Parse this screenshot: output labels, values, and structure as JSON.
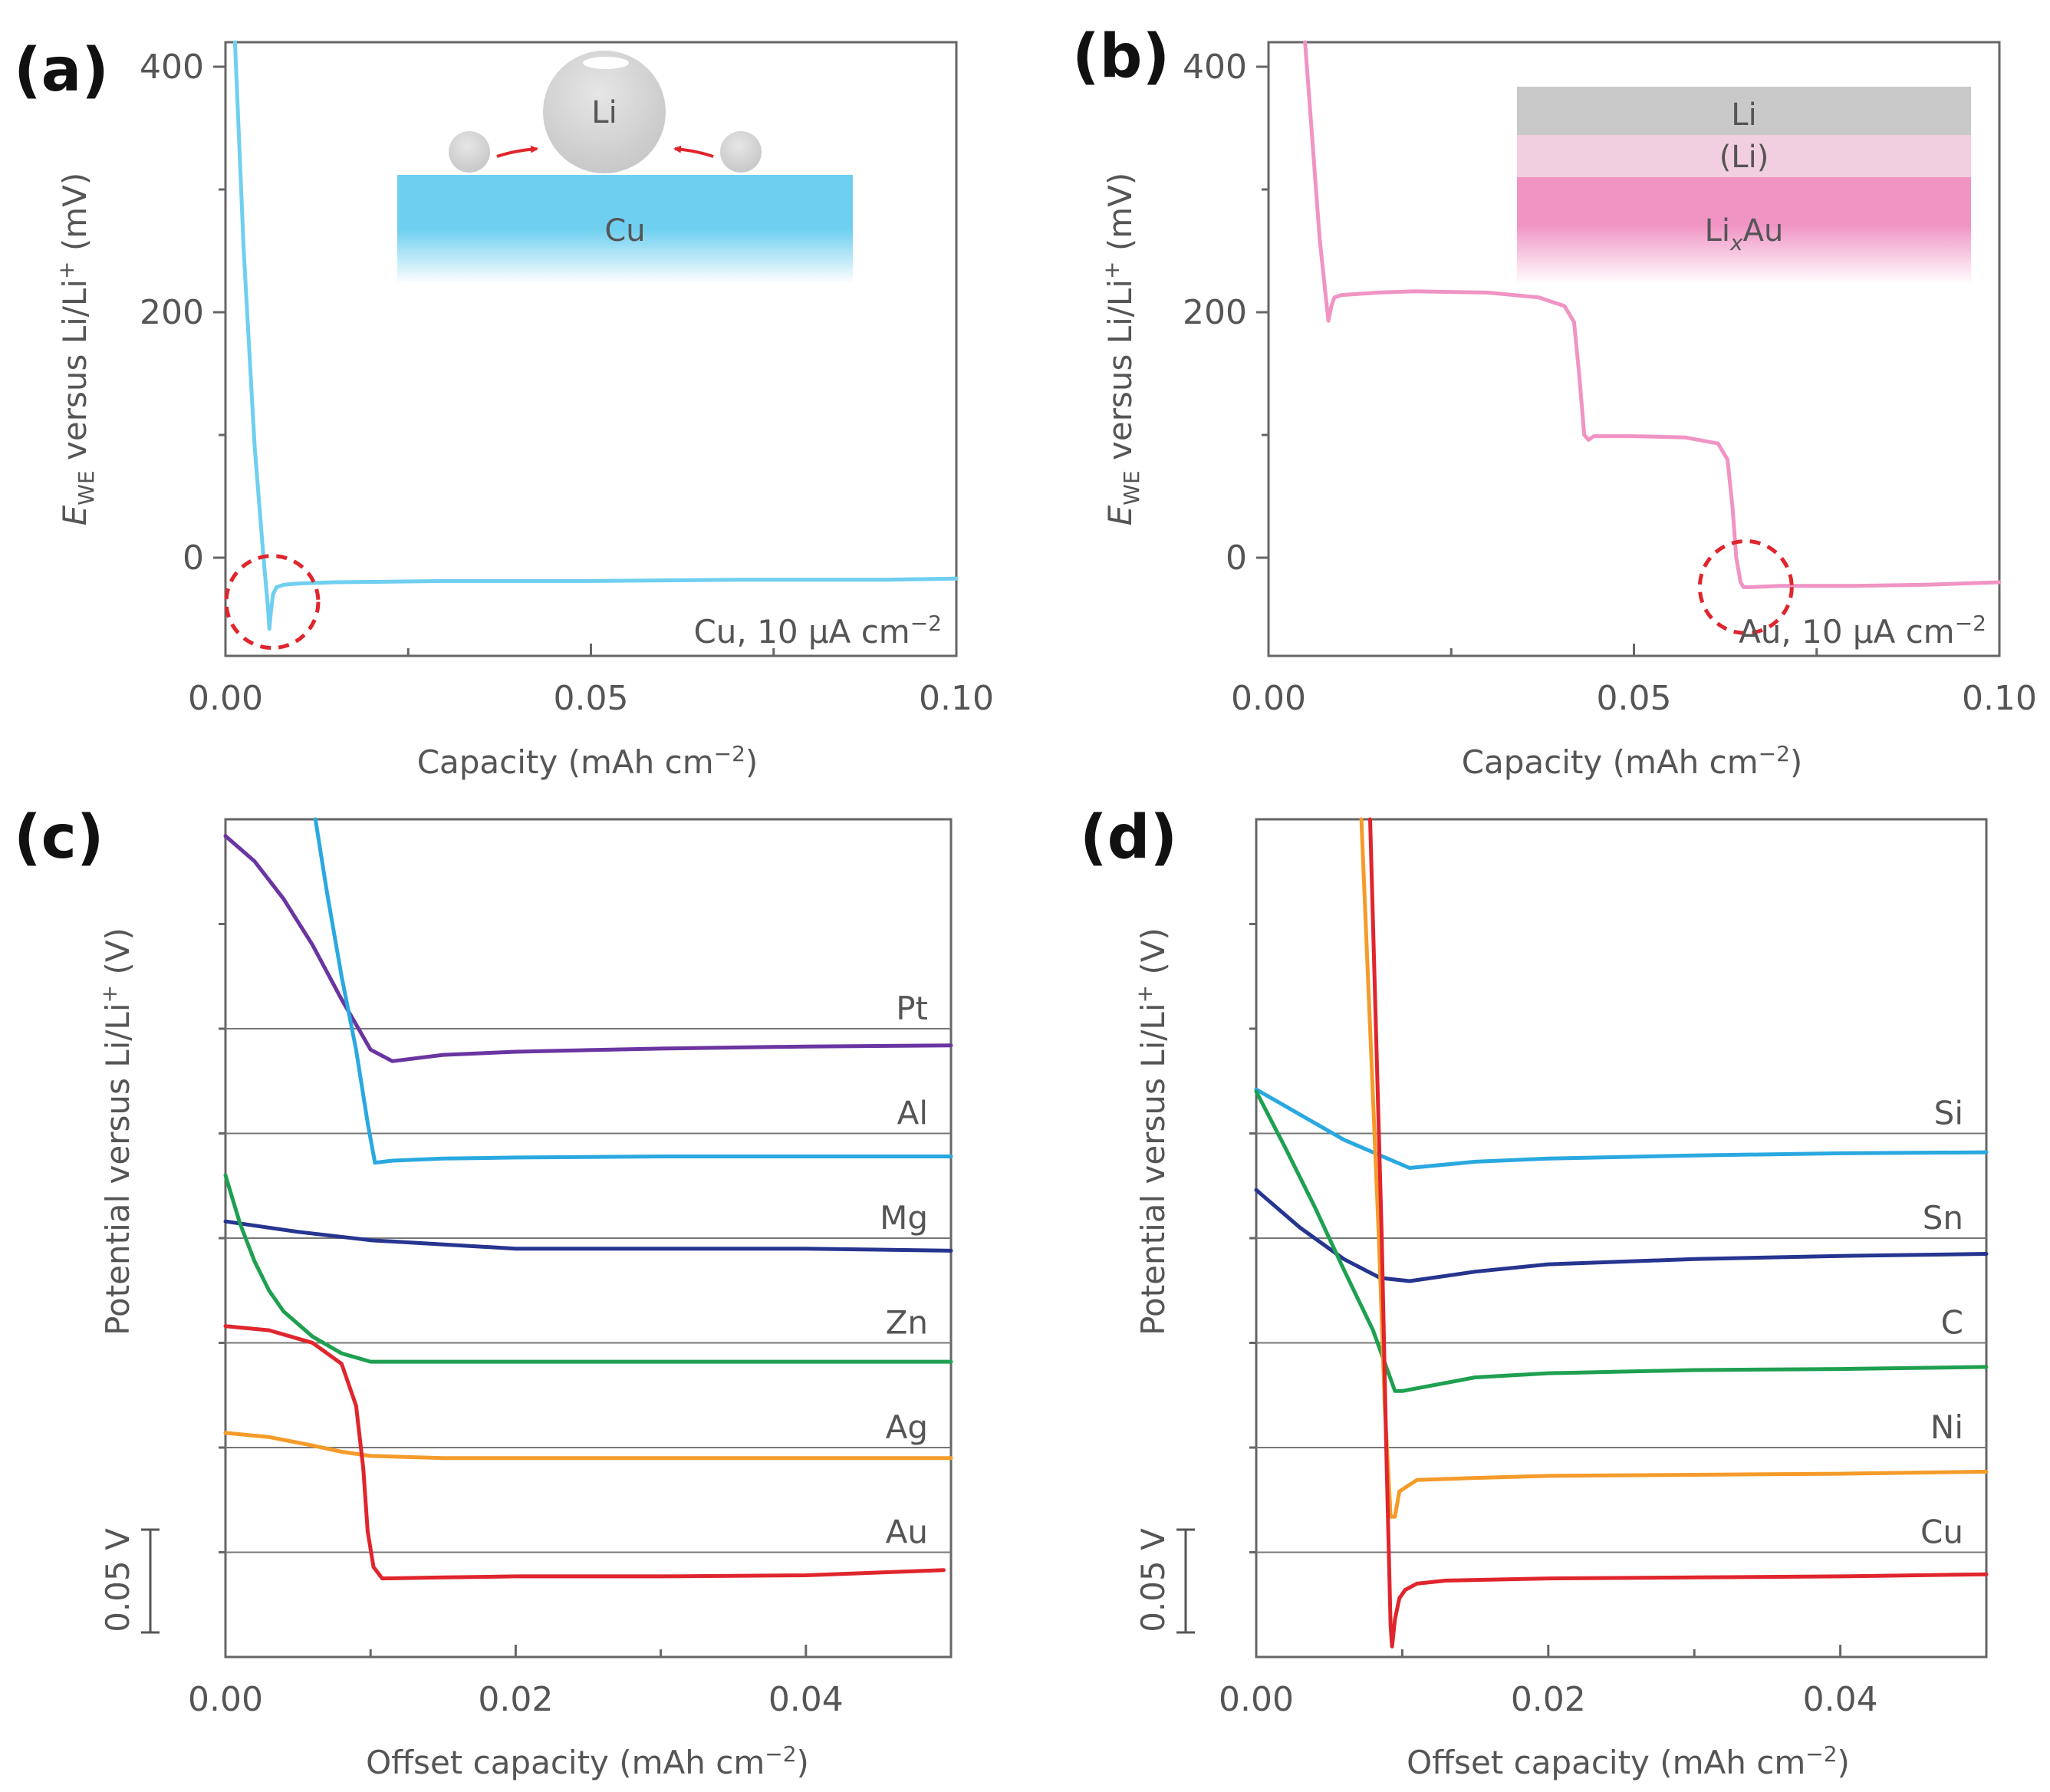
{
  "figure": {
    "panel_labels": [
      "(a)",
      "(b)",
      "(c)",
      "(d)"
    ],
    "colors": {
      "cu_blue": "#6fcff0",
      "au_pink": "#f094c4",
      "purple": "#6a35a0",
      "light_blue": "#2aa8e0",
      "navy": "#26358f",
      "green": "#1fa050",
      "red": "#e0252d",
      "orange": "#f59b2a",
      "dashed_circle": "#e0252d"
    }
  },
  "chart_data": [
    {
      "panel": "(a)",
      "type": "line",
      "xlabel": "Capacity (mAh cm",
      "xlabel_sup": "−2",
      "xlabel_end": ")",
      "ylabel_parts": [
        "E",
        "WE",
        " versus Li/Li",
        "+",
        " (mV)"
      ],
      "xlim": [
        0,
        0.1
      ],
      "ylim": [
        -80,
        420
      ],
      "xticks": [
        0,
        0.05,
        0.1
      ],
      "xtick_labels": [
        "0.00",
        "0.05",
        "0.10"
      ],
      "yticks": [
        0,
        200,
        400
      ],
      "ytick_labels": [
        "0",
        "200",
        "400"
      ],
      "annotation": "Cu, 10 μA cm",
      "annotation_sup": "−2",
      "inset": {
        "big_sphere": "Li",
        "substrate": "Cu"
      },
      "circle_center": [
        0.0064,
        -36
      ],
      "series": [
        {
          "name": "Cu",
          "color": "#6fcff0",
          "x": [
            0.0013,
            0.0025,
            0.004,
            0.0052,
            0.0058,
            0.006,
            0.0062,
            0.0065,
            0.007,
            0.008,
            0.01,
            0.015,
            0.03,
            0.05,
            0.07,
            0.09,
            0.1
          ],
          "y": [
            420,
            250,
            90,
            0,
            -40,
            -58,
            -45,
            -30,
            -24,
            -22,
            -21,
            -20,
            -19,
            -19,
            -18,
            -18,
            -17
          ]
        }
      ]
    },
    {
      "panel": "(b)",
      "type": "line",
      "xlabel": "Capacity (mAh cm",
      "xlabel_sup": "−2",
      "xlabel_end": ")",
      "ylabel_parts": [
        "E",
        "WE",
        " versus Li/Li",
        "+",
        " (mV)"
      ],
      "xlim": [
        0,
        0.1
      ],
      "ylim": [
        -80,
        420
      ],
      "xticks": [
        0,
        0.05,
        0.1
      ],
      "xtick_labels": [
        "0.00",
        "0.05",
        "0.10"
      ],
      "yticks": [
        0,
        200,
        400
      ],
      "ytick_labels": [
        "0",
        "200",
        "400"
      ],
      "annotation": "Au, 10 μA cm",
      "annotation_sup": "−2",
      "inset": {
        "layers": [
          "Li",
          "(Li)",
          "Li",
          "x",
          "Au"
        ]
      },
      "circle_center": [
        0.0653,
        -24
      ],
      "series": [
        {
          "name": "Au",
          "color": "#f094c4",
          "x": [
            0.005,
            0.006,
            0.007,
            0.0078,
            0.0082,
            0.0086,
            0.009,
            0.01,
            0.015,
            0.02,
            0.03,
            0.037,
            0.0405,
            0.0418,
            0.0425,
            0.0432,
            0.0438,
            0.0445,
            0.05,
            0.057,
            0.0615,
            0.0628,
            0.0635,
            0.064,
            0.0646,
            0.065,
            0.066,
            0.07,
            0.08,
            0.09,
            0.1
          ],
          "y": [
            420,
            340,
            260,
            215,
            193,
            205,
            212,
            214,
            216,
            217,
            216,
            212,
            205,
            192,
            150,
            100,
            96,
            99,
            99,
            98,
            93,
            80,
            40,
            0,
            -20,
            -24,
            -24,
            -23,
            -23,
            -22,
            -20
          ]
        }
      ]
    },
    {
      "panel": "(c)",
      "type": "line",
      "xlabel": "Offset capacity (mAh cm",
      "xlabel_sup": "−2",
      "xlabel_end": ")",
      "ylabel": "Potential versus Li/Li",
      "ylabel_sup": "+",
      "ylabel_end": " (V)",
      "scale_bar": "0.05 V",
      "xlim": [
        0,
        0.05
      ],
      "ylim": [
        0,
        0.4
      ],
      "xticks": [
        0,
        0.02,
        0.04
      ],
      "xtick_labels": [
        "0.00",
        "0.02",
        "0.04"
      ],
      "xminor": [
        0.01,
        0.03,
        0.05
      ],
      "yminor": [
        0.05,
        0.1,
        0.15,
        0.2,
        0.25,
        0.3,
        0.35
      ],
      "baselines": [
        0.3,
        0.25,
        0.2,
        0.15,
        0.1,
        0.05
      ],
      "series": [
        {
          "name": "Pt",
          "color": "#6a35a0",
          "baseline": 0.3,
          "x": [
            0,
            0.002,
            0.004,
            0.006,
            0.008,
            0.01,
            0.0115,
            0.015,
            0.02,
            0.03,
            0.04,
            0.05
          ],
          "y": [
            0.392,
            0.38,
            0.362,
            0.34,
            0.314,
            0.29,
            0.2845,
            0.2875,
            0.289,
            0.2905,
            0.2915,
            0.292
          ]
        },
        {
          "name": "Al",
          "color": "#2aa8e0",
          "baseline": 0.25,
          "x": [
            0.0062,
            0.007,
            0.008,
            0.009,
            0.0098,
            0.0103,
            0.0115,
            0.015,
            0.02,
            0.03,
            0.04,
            0.05
          ],
          "y": [
            0.4,
            0.365,
            0.325,
            0.29,
            0.255,
            0.236,
            0.237,
            0.238,
            0.2385,
            0.239,
            0.239,
            0.239
          ]
        },
        {
          "name": "Mg",
          "color": "#26358f",
          "baseline": 0.2,
          "x": [
            0,
            0.005,
            0.01,
            0.015,
            0.02,
            0.025,
            0.03,
            0.04,
            0.05
          ],
          "y": [
            0.208,
            0.203,
            0.199,
            0.197,
            0.195,
            0.195,
            0.195,
            0.195,
            0.194
          ]
        },
        {
          "name": "Zn",
          "color": "#1fa050",
          "baseline": 0.15,
          "x": [
            0,
            0.001,
            0.002,
            0.003,
            0.004,
            0.006,
            0.008,
            0.01,
            0.015,
            0.02,
            0.03,
            0.05
          ],
          "y": [
            0.23,
            0.207,
            0.189,
            0.175,
            0.165,
            0.153,
            0.145,
            0.141,
            0.141,
            0.141,
            0.141,
            0.141
          ]
        },
        {
          "name": "Ag",
          "color": "#f59b2a",
          "baseline": 0.1,
          "x": [
            0,
            0.003,
            0.006,
            0.008,
            0.01,
            0.015,
            0.02,
            0.03,
            0.04,
            0.05
          ],
          "y": [
            0.107,
            0.105,
            0.101,
            0.098,
            0.096,
            0.095,
            0.095,
            0.095,
            0.095,
            0.095
          ]
        },
        {
          "name": "Au",
          "color": "#e0252d",
          "baseline": 0.05,
          "x": [
            0,
            0.003,
            0.006,
            0.008,
            0.009,
            0.0095,
            0.0098,
            0.0102,
            0.0108,
            0.015,
            0.02,
            0.03,
            0.04,
            0.0495
          ],
          "y": [
            0.158,
            0.156,
            0.15,
            0.14,
            0.12,
            0.09,
            0.06,
            0.043,
            0.0375,
            0.038,
            0.0385,
            0.0385,
            0.039,
            0.0415
          ]
        }
      ]
    },
    {
      "panel": "(d)",
      "type": "line",
      "xlabel": "Offset capacity (mAh cm",
      "xlabel_sup": "−2",
      "xlabel_end": ")",
      "ylabel": "Potential versus Li/Li",
      "ylabel_sup": "+",
      "ylabel_end": " (V)",
      "scale_bar": "0.05 V",
      "xlim": [
        0,
        0.05
      ],
      "ylim": [
        0,
        0.4
      ],
      "xticks": [
        0,
        0.02,
        0.04
      ],
      "xtick_labels": [
        "0.00",
        "0.02",
        "0.04"
      ],
      "xminor": [
        0.01,
        0.03,
        0.05
      ],
      "yminor": [
        0.05,
        0.1,
        0.15,
        0.2,
        0.25,
        0.3,
        0.35
      ],
      "baselines": [
        0.25,
        0.2,
        0.15,
        0.1,
        0.05
      ],
      "series": [
        {
          "name": "Si",
          "color": "#2aa8e0",
          "baseline": 0.25,
          "x": [
            0,
            0.003,
            0.006,
            0.009,
            0.0105,
            0.015,
            0.02,
            0.03,
            0.04,
            0.05
          ],
          "y": [
            0.271,
            0.259,
            0.247,
            0.238,
            0.2335,
            0.2365,
            0.238,
            0.2395,
            0.2405,
            0.241
          ]
        },
        {
          "name": "Sn",
          "color": "#26358f",
          "baseline": 0.2,
          "x": [
            0,
            0.003,
            0.006,
            0.0085,
            0.0105,
            0.015,
            0.02,
            0.03,
            0.04,
            0.05
          ],
          "y": [
            0.223,
            0.205,
            0.19,
            0.181,
            0.1795,
            0.184,
            0.1875,
            0.19,
            0.1915,
            0.1925
          ]
        },
        {
          "name": "C",
          "color": "#1fa050",
          "baseline": 0.15,
          "x": [
            0,
            0.002,
            0.004,
            0.006,
            0.008,
            0.0095,
            0.01,
            0.015,
            0.02,
            0.03,
            0.04,
            0.05
          ],
          "y": [
            0.27,
            0.243,
            0.215,
            0.185,
            0.156,
            0.127,
            0.127,
            0.1335,
            0.1355,
            0.137,
            0.1375,
            0.1385
          ]
        },
        {
          "name": "Ni",
          "color": "#f59b2a",
          "baseline": 0.1,
          "x": [
            0.0072,
            0.0078,
            0.0084,
            0.0088,
            0.0092,
            0.0095,
            0.0098,
            0.011,
            0.015,
            0.02,
            0.03,
            0.04,
            0.05
          ],
          "y": [
            0.4,
            0.3,
            0.2,
            0.12,
            0.067,
            0.067,
            0.079,
            0.0845,
            0.0855,
            0.0865,
            0.087,
            0.0875,
            0.0885
          ]
        },
        {
          "name": "Cu",
          "color": "#e0252d",
          "baseline": 0.05,
          "x": [
            0.0078,
            0.0082,
            0.0086,
            0.0089,
            0.0092,
            0.0093,
            0.0095,
            0.0098,
            0.0102,
            0.011,
            0.013,
            0.02,
            0.03,
            0.04,
            0.05
          ],
          "y": [
            0.4,
            0.3,
            0.2,
            0.1,
            0.015,
            0.005,
            0.018,
            0.028,
            0.032,
            0.035,
            0.0365,
            0.0375,
            0.038,
            0.0385,
            0.0395
          ]
        }
      ]
    }
  ]
}
